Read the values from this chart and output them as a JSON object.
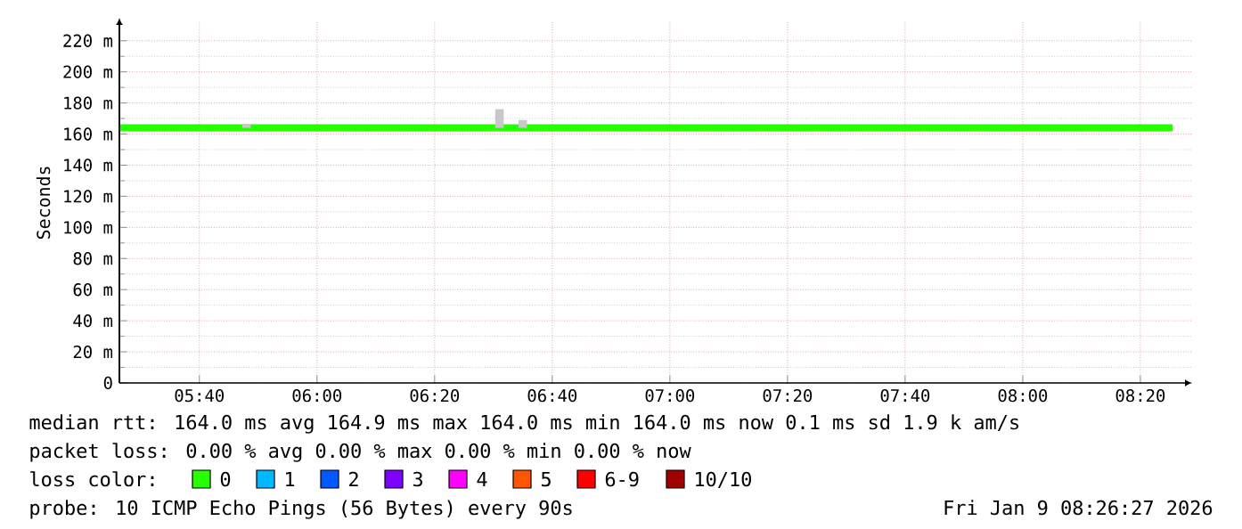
{
  "chart_data": {
    "type": "line",
    "ylabel": "Seconds",
    "x": [
      5.44,
      8.425
    ],
    "xlim": [
      5.44,
      8.48
    ],
    "xticks": [
      {
        "value": 5.666667,
        "label": "05:40"
      },
      {
        "value": 6.0,
        "label": "06:00"
      },
      {
        "value": 6.333333,
        "label": "06:20"
      },
      {
        "value": 6.666667,
        "label": "06:40"
      },
      {
        "value": 7.0,
        "label": "07:00"
      },
      {
        "value": 7.333333,
        "label": "07:20"
      },
      {
        "value": 7.666667,
        "label": "07:40"
      },
      {
        "value": 8.0,
        "label": "08:00"
      },
      {
        "value": 8.333333,
        "label": "08:20"
      }
    ],
    "ylim": [
      0,
      232
    ],
    "yticks": [
      0,
      {
        "value": 20,
        "label": "20 m"
      },
      {
        "value": 40,
        "label": "40 m"
      },
      {
        "value": 60,
        "label": "60 m"
      },
      {
        "value": 80,
        "label": "80 m"
      },
      {
        "value": 100,
        "label": "100 m"
      },
      {
        "value": 120,
        "label": "120 m"
      },
      {
        "value": 140,
        "label": "140 m"
      },
      {
        "value": 160,
        "label": "160 m"
      },
      {
        "value": 180,
        "label": "180 m"
      },
      {
        "value": 200,
        "label": "200 m"
      },
      {
        "value": 220,
        "label": "220 m"
      }
    ],
    "grid": true,
    "legend": "bottom",
    "legend_title": "loss color:",
    "series": [
      {
        "name": "0",
        "color": "#26ff00",
        "values": [
          164,
          164
        ]
      },
      {
        "name": "1",
        "color": "#00b8ff",
        "values": [
          null,
          null
        ]
      },
      {
        "name": "2",
        "color": "#0059ff",
        "values": [
          null,
          null
        ]
      },
      {
        "name": "3",
        "color": "#7e00ff",
        "values": [
          null,
          null
        ]
      },
      {
        "name": "4",
        "color": "#ff00ff",
        "values": [
          null,
          null
        ]
      },
      {
        "name": "5",
        "color": "#ff5500",
        "values": [
          null,
          null
        ]
      },
      {
        "name": "6-9",
        "color": "#ff0000",
        "values": [
          null,
          null
        ]
      },
      {
        "name": "10/10",
        "color": "#a10000",
        "values": [
          null,
          null
        ]
      },
      {
        "type": "bar",
        "color": "#c8c8c8",
        "x": [
          5.8,
          6.517,
          6.583
        ],
        "base": [
          164,
          164,
          164
        ],
        "values": [
          2,
          12,
          5
        ]
      }
    ],
    "annotations": [
      "median rtt:  164.0 ms avg  164.9 ms max  164.0 ms min  164.0 ms now  0.1 ms sd  1.9 k am/s",
      "packet loss: 0.00 % avg  0.00 % max  0.00 % min  0.00 % now",
      "probe:       10 ICMP Echo Pings (56 Bytes) every 90s",
      "Fri Jan  9 08:26:27 2026"
    ]
  }
}
